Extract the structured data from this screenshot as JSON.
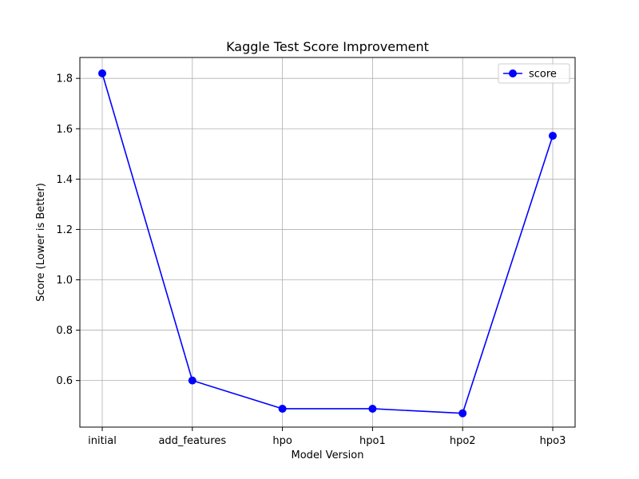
{
  "chart_data": {
    "type": "line",
    "title": "Kaggle Test Score Improvement",
    "xlabel": "Model Version",
    "ylabel": "Score (Lower is Better)",
    "categories": [
      "initial",
      "add_features",
      "hpo",
      "hpo1",
      "hpo2",
      "hpo3"
    ],
    "series": [
      {
        "name": "score",
        "values": [
          1.82,
          0.6,
          0.488,
          0.488,
          0.47,
          1.572
        ],
        "color": "#0000ff",
        "marker": "circle"
      }
    ],
    "ylim": [
      0.415,
      1.883
    ],
    "yticks": [
      0.6,
      0.8,
      1.0,
      1.2,
      1.4,
      1.6,
      1.8
    ],
    "ytick_labels": [
      "0.6",
      "0.8",
      "1.0",
      "1.2",
      "1.4",
      "1.6",
      "1.8"
    ],
    "grid": true,
    "legend_position": "top-right"
  }
}
